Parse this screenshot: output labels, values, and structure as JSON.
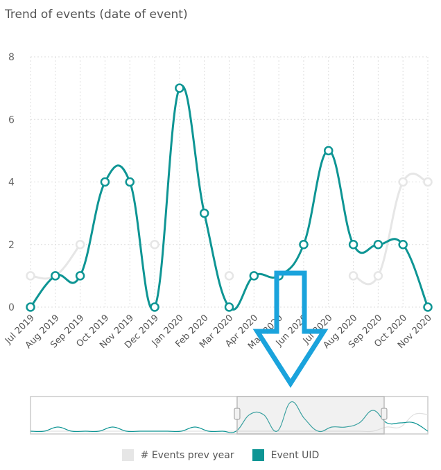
{
  "chart_data": {
    "type": "line",
    "title": "Trend of events (date of event)",
    "categories": [
      "Jul 2019",
      "Aug 2019",
      "Sep 2019",
      "Oct 2019",
      "Nov 2019",
      "Dec 2019",
      "Jan 2020",
      "Feb 2020",
      "Mar 2020",
      "Apr 2020",
      "May 2020",
      "Jun 2020",
      "Jul 2020",
      "Aug 2020",
      "Sep 2020",
      "Oct 2020",
      "Nov 2020"
    ],
    "ylim": [
      0,
      8
    ],
    "yticks": [
      0,
      2,
      4,
      6,
      8
    ],
    "grid": true,
    "legend_position": "bottom",
    "series": [
      {
        "name": "# Events prev year",
        "color": "#e6e6e6",
        "values": [
          1,
          1,
          2,
          null,
          null,
          2,
          null,
          null,
          1,
          null,
          null,
          null,
          null,
          1,
          1,
          4,
          4
        ]
      },
      {
        "name": "Event UID",
        "color": "#0e9594",
        "values": [
          0,
          1,
          1,
          4,
          4,
          0,
          7,
          3,
          0,
          1,
          1,
          2,
          5,
          2,
          2,
          2,
          0
        ]
      }
    ],
    "navigator": {
      "values": [
        0,
        0,
        1,
        0,
        0,
        0,
        1,
        0,
        0,
        0,
        0,
        0,
        1,
        0,
        0,
        0,
        4,
        4,
        0,
        7,
        3,
        0,
        1,
        1,
        2,
        5,
        2,
        2,
        2,
        0
      ],
      "prev_values": [
        0,
        0,
        0,
        0,
        0,
        0,
        0,
        0,
        0,
        0,
        0,
        0,
        0,
        0,
        0,
        0,
        0,
        0,
        0,
        0,
        0,
        0,
        0,
        0,
        0,
        0,
        1,
        1,
        4,
        4
      ],
      "selection_start": 0.52,
      "selection_end": 0.89
    },
    "annotation": "down-arrow",
    "annotation_color": "#1aa3dc"
  }
}
